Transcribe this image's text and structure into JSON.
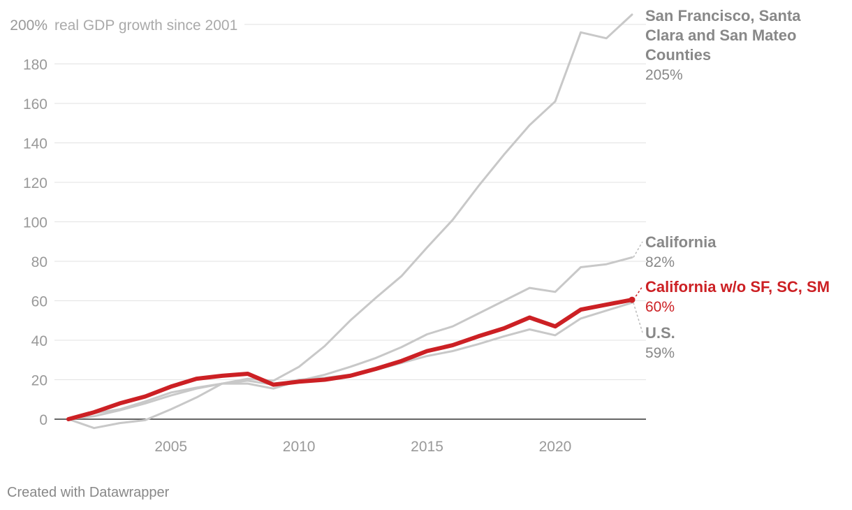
{
  "chart_data": {
    "type": "line",
    "ylabel": "real GDP growth since 2001",
    "ylim": [
      -5,
      210
    ],
    "xlim": [
      2001,
      2023
    ],
    "y_ticks": [
      0,
      20,
      40,
      60,
      80,
      100,
      120,
      140,
      160,
      180,
      200
    ],
    "y_tick_labels": [
      "0",
      "20",
      "40",
      "60",
      "80",
      "100",
      "120",
      "140",
      "160",
      "180",
      "200%"
    ],
    "x_ticks": [
      2005,
      2010,
      2015,
      2020
    ],
    "x_tick_labels": [
      "2005",
      "2010",
      "2015",
      "2020"
    ],
    "grid": true,
    "legend": "direct labels at line ends (right)",
    "x": [
      2001,
      2002,
      2003,
      2004,
      2005,
      2006,
      2007,
      2008,
      2009,
      2010,
      2011,
      2012,
      2013,
      2014,
      2015,
      2016,
      2017,
      2018,
      2019,
      2020,
      2021,
      2022,
      2023
    ],
    "series": [
      {
        "name": "San Francisco, Santa Clara and San Mateo Counties",
        "end_label_lines": [
          "San Francisco, Santa",
          "Clara and San Mateo",
          "Counties"
        ],
        "end_value_label": "205%",
        "color": "#c8c8c8",
        "values": [
          0,
          -4.5,
          -2,
          -0.5,
          5,
          11,
          18,
          20.5,
          19.5,
          26.5,
          37,
          50,
          61.5,
          72.5,
          87,
          101,
          118,
          134,
          149,
          161,
          196,
          193,
          205
        ]
      },
      {
        "name": "California",
        "end_label_lines": [
          "California"
        ],
        "end_value_label": "82%",
        "color": "#c8c8c8",
        "values": [
          0,
          3,
          5,
          9,
          13.5,
          16,
          18,
          18,
          15.5,
          19.5,
          22.5,
          26.5,
          31,
          36.5,
          43,
          47,
          53.5,
          60,
          66.5,
          64.5,
          77,
          78.5,
          82
        ]
      },
      {
        "name": "U.S.",
        "end_label_lines": [
          "U.S."
        ],
        "end_value_label": "59%",
        "color": "#c8c8c8",
        "values": [
          0,
          1.5,
          4.5,
          8,
          12,
          15.5,
          18,
          19.5,
          17.5,
          20,
          21,
          22.5,
          25,
          28.5,
          32,
          34.5,
          38,
          42,
          45.5,
          42.5,
          51,
          55,
          59
        ]
      },
      {
        "name": "California w/o SF, SC, SM",
        "end_label_lines": [
          "California w/o SF, SC, SM"
        ],
        "end_value_label": "60%",
        "color": "#cc2024",
        "values": [
          0,
          3.5,
          8,
          11.5,
          16.5,
          20.5,
          22,
          23,
          17.5,
          19,
          20,
          22,
          25.5,
          29.5,
          34.5,
          37.5,
          42,
          46,
          51.5,
          47,
          55.5,
          58,
          60.5
        ]
      }
    ],
    "footer": "Created with Datawrapper"
  }
}
